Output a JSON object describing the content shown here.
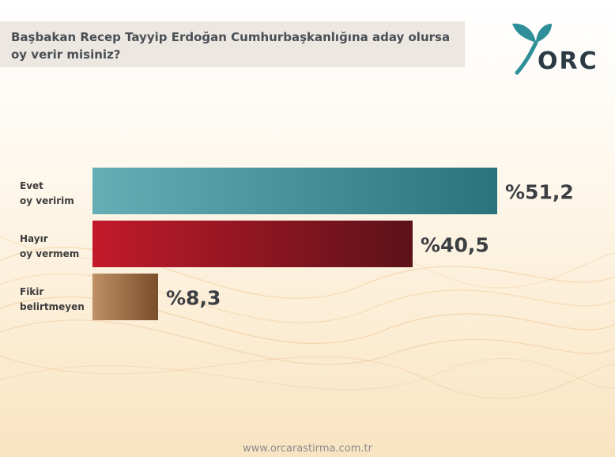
{
  "title": "Başbakan Recep Tayyip Erdoğan Cumhurbaşkanlığına aday olursa oy verir misiniz?",
  "brand": {
    "logo_text": "ORC",
    "logo_icon": "leaf-icon",
    "colors": {
      "teal": "#2f8f98",
      "dark": "#2b3a45"
    }
  },
  "footer": "www.orcarastirma.com.tr",
  "chart_data": {
    "type": "bar",
    "orientation": "horizontal",
    "categories": [
      [
        "Evet",
        "oy veririm"
      ],
      [
        "Hayır",
        "oy vermem"
      ],
      [
        "Fikir",
        "belirtmeyen"
      ]
    ],
    "values": [
      51.2,
      40.5,
      8.3
    ],
    "value_labels": [
      "%51,2",
      "%40,5",
      "%8,3"
    ],
    "xlim": [
      0,
      100
    ],
    "grid": false,
    "bar_colors": [
      [
        "#64aeb5",
        "#2a737c"
      ],
      [
        "#c21a2b",
        "#5c1218"
      ],
      [
        "#c09066",
        "#7a4e2a"
      ]
    ]
  }
}
